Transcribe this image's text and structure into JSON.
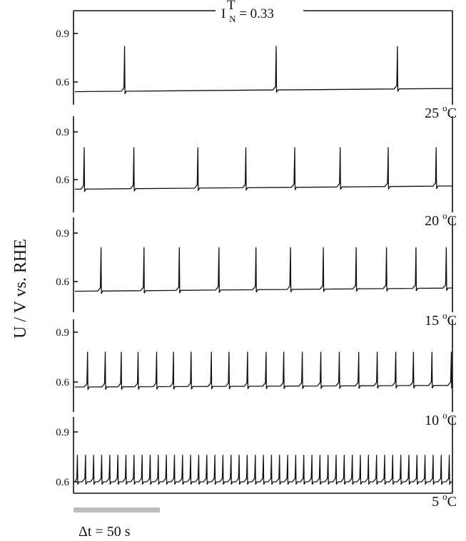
{
  "chart_data": {
    "type": "line",
    "title": {
      "main": "I",
      "superscript": "T",
      "subscript": "N",
      "rest": " = 0.33"
    },
    "ylabel": "U / V vs. RHE",
    "time_scale_label": "Δt = 50 s",
    "time_scale_seconds": 50,
    "degree_symbol": "o",
    "panels": [
      {
        "temperature_label": "25 °C",
        "temperature": "25",
        "unit": "C",
        "yticks": [
          "0.9",
          "0.6"
        ],
        "ylim": [
          0.45,
          1.0
        ],
        "baseline_start": 0.54,
        "baseline_end": 0.56,
        "peak": 0.82,
        "spike_times_s": [
          59,
          239,
          383
        ]
      },
      {
        "temperature_label": "20 °C",
        "temperature": "20",
        "unit": "C",
        "yticks": [
          "0.9",
          "0.6"
        ],
        "ylim": [
          0.45,
          1.0
        ],
        "baseline_start": 0.54,
        "baseline_end": 0.56,
        "peak": 0.8,
        "spike_times_s": [
          11,
          70,
          146,
          203,
          261,
          315,
          372,
          429
        ]
      },
      {
        "temperature_label": "15 °C",
        "temperature": "15",
        "unit": "C",
        "yticks": [
          "0.9",
          "0.6"
        ],
        "ylim": [
          0.45,
          1.0
        ],
        "baseline_start": 0.54,
        "baseline_end": 0.56,
        "peak": 0.81,
        "spike_times_s": [
          31,
          82,
          124,
          171,
          215,
          256,
          295,
          334,
          370,
          405,
          441
        ]
      },
      {
        "temperature_label": "10 °C",
        "temperature": "10",
        "unit": "C",
        "yticks": [
          "0.9",
          "0.6"
        ],
        "ylim": [
          0.45,
          1.0
        ],
        "baseline_start": 0.57,
        "baseline_end": 0.58,
        "peak": 0.78,
        "spike_times_s": [
          15,
          36,
          55,
          75,
          97,
          117,
          138,
          162,
          183,
          205,
          227,
          248,
          270,
          292,
          314,
          337,
          359,
          381,
          402,
          424,
          447
        ]
      },
      {
        "temperature_label": "5 °C",
        "temperature": "5",
        "unit": "C",
        "yticks": [
          "0.9",
          "0.6"
        ],
        "ylim": [
          0.45,
          1.0
        ],
        "baseline_start": 0.6,
        "baseline_end": 0.6,
        "peak": 0.76,
        "spike_period_s": 9.6,
        "spike_first_s": 3
      }
    ]
  }
}
